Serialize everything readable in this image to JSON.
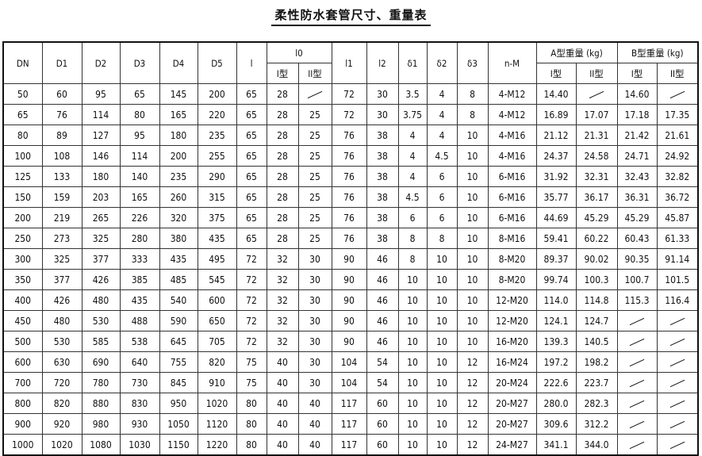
{
  "title": "柔性防水套管尺寸、重量表",
  "headers": {
    "DN": "DN",
    "D1": "D1",
    "D2": "D2",
    "D3": "D3",
    "D4": "D4",
    "D5": "D5",
    "l": "l",
    "l0": "l0",
    "l1": "l1",
    "l2": "l2",
    "d1": "δ1",
    "d2": "δ2",
    "d3": "δ3",
    "nM": "n-M",
    "A": "A型重量 (kg)",
    "B": "B型重量 (kg)",
    "typeI": "I型",
    "typeII": "II型"
  },
  "rows": [
    [
      "50",
      "60",
      "95",
      "65",
      "145",
      "200",
      "65",
      "28",
      "/",
      "72",
      "30",
      "3.5",
      "4",
      "8",
      "4-M12",
      "14.40",
      "/",
      "14.60",
      "/"
    ],
    [
      "65",
      "76",
      "114",
      "80",
      "165",
      "220",
      "65",
      "28",
      "25",
      "72",
      "30",
      "3.75",
      "4",
      "8",
      "4-M12",
      "16.89",
      "17.07",
      "17.18",
      "17.35"
    ],
    [
      "80",
      "89",
      "127",
      "95",
      "180",
      "235",
      "65",
      "28",
      "25",
      "76",
      "38",
      "4",
      "4",
      "10",
      "4-M16",
      "21.12",
      "21.31",
      "21.42",
      "21.61"
    ],
    [
      "100",
      "108",
      "146",
      "114",
      "200",
      "255",
      "65",
      "28",
      "25",
      "76",
      "38",
      "4",
      "4.5",
      "10",
      "4-M16",
      "24.37",
      "24.58",
      "24.71",
      "24.92"
    ],
    [
      "125",
      "133",
      "180",
      "140",
      "235",
      "290",
      "65",
      "28",
      "25",
      "76",
      "38",
      "4",
      "6",
      "10",
      "6-M16",
      "31.92",
      "32.31",
      "32.43",
      "32.82"
    ],
    [
      "150",
      "159",
      "203",
      "165",
      "260",
      "315",
      "65",
      "28",
      "25",
      "76",
      "38",
      "4.5",
      "6",
      "10",
      "6-M16",
      "35.77",
      "36.17",
      "36.31",
      "36.72"
    ],
    [
      "200",
      "219",
      "265",
      "226",
      "320",
      "375",
      "65",
      "28",
      "25",
      "76",
      "38",
      "6",
      "6",
      "10",
      "6-M16",
      "44.69",
      "45.29",
      "45.29",
      "45.87"
    ],
    [
      "250",
      "273",
      "325",
      "280",
      "380",
      "435",
      "65",
      "28",
      "25",
      "76",
      "38",
      "8",
      "8",
      "10",
      "8-M16",
      "59.41",
      "60.22",
      "60.43",
      "61.33"
    ],
    [
      "300",
      "325",
      "377",
      "333",
      "435",
      "495",
      "72",
      "32",
      "30",
      "90",
      "46",
      "8",
      "10",
      "10",
      "8-M20",
      "89.37",
      "90.02",
      "90.35",
      "91.14"
    ],
    [
      "350",
      "377",
      "426",
      "385",
      "485",
      "545",
      "72",
      "32",
      "30",
      "90",
      "46",
      "10",
      "10",
      "10",
      "8-M20",
      "99.74",
      "100.3",
      "100.7",
      "101.5"
    ],
    [
      "400",
      "426",
      "480",
      "435",
      "540",
      "600",
      "72",
      "32",
      "30",
      "90",
      "46",
      "10",
      "10",
      "10",
      "12-M20",
      "114.0",
      "114.8",
      "115.3",
      "116.4"
    ],
    [
      "450",
      "480",
      "530",
      "488",
      "590",
      "650",
      "72",
      "32",
      "30",
      "90",
      "46",
      "10",
      "10",
      "10",
      "12-M20",
      "124.1",
      "124.7",
      "/",
      "/"
    ],
    [
      "500",
      "530",
      "585",
      "538",
      "645",
      "705",
      "72",
      "32",
      "30",
      "90",
      "46",
      "10",
      "10",
      "10",
      "16-M20",
      "139.3",
      "140.5",
      "/",
      "/"
    ],
    [
      "600",
      "630",
      "690",
      "640",
      "755",
      "820",
      "75",
      "40",
      "30",
      "104",
      "54",
      "10",
      "10",
      "12",
      "16-M24",
      "197.2",
      "198.2",
      "/",
      "/"
    ],
    [
      "700",
      "720",
      "780",
      "730",
      "845",
      "910",
      "75",
      "40",
      "30",
      "104",
      "54",
      "10",
      "10",
      "12",
      "20-M24",
      "222.6",
      "223.7",
      "/",
      "/"
    ],
    [
      "800",
      "820",
      "880",
      "830",
      "950",
      "1020",
      "80",
      "40",
      "40",
      "117",
      "60",
      "10",
      "10",
      "12",
      "20-M27",
      "280.0",
      "282.3",
      "/",
      "/"
    ],
    [
      "900",
      "920",
      "980",
      "930",
      "1050",
      "1120",
      "80",
      "40",
      "40",
      "117",
      "60",
      "10",
      "10",
      "12",
      "20-M27",
      "309.6",
      "312.2",
      "/",
      "/"
    ],
    [
      "1000",
      "1020",
      "1080",
      "1030",
      "1150",
      "1220",
      "80",
      "40",
      "40",
      "117",
      "60",
      "10",
      "10",
      "12",
      "24-M27",
      "341.1",
      "344.0",
      "/",
      "/"
    ]
  ]
}
